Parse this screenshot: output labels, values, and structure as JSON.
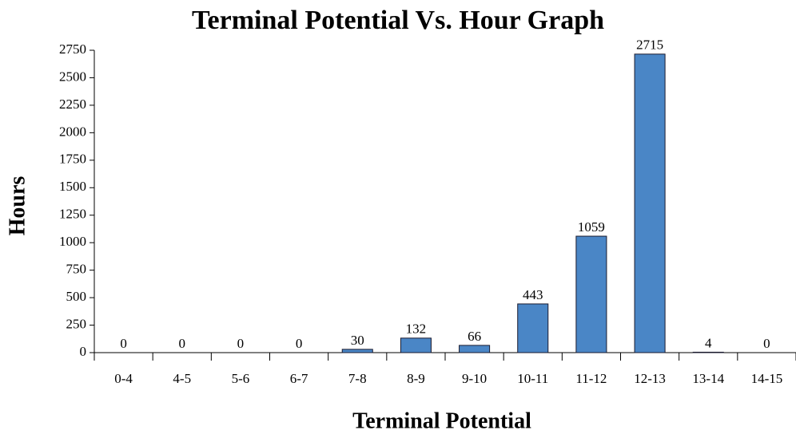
{
  "chart_data": {
    "type": "bar",
    "title": "Terminal Potential Vs. Hour Graph",
    "x_label": "Terminal Potential",
    "y_label": "Hours",
    "categories": [
      "0-4",
      "4-5",
      "5-6",
      "6-7",
      "7-8",
      "8-9",
      "9-10",
      "10-11",
      "11-12",
      "12-13",
      "13-14",
      "14-15"
    ],
    "values": [
      0,
      0,
      0,
      0,
      30,
      132,
      66,
      443,
      1059,
      2715,
      4,
      0
    ],
    "color": "#4a86c6",
    "ylim": [
      0,
      2750
    ],
    "yticks": [
      0,
      250,
      500,
      750,
      1000,
      1250,
      1500,
      1750,
      2000,
      2250,
      2500,
      2750
    ]
  }
}
